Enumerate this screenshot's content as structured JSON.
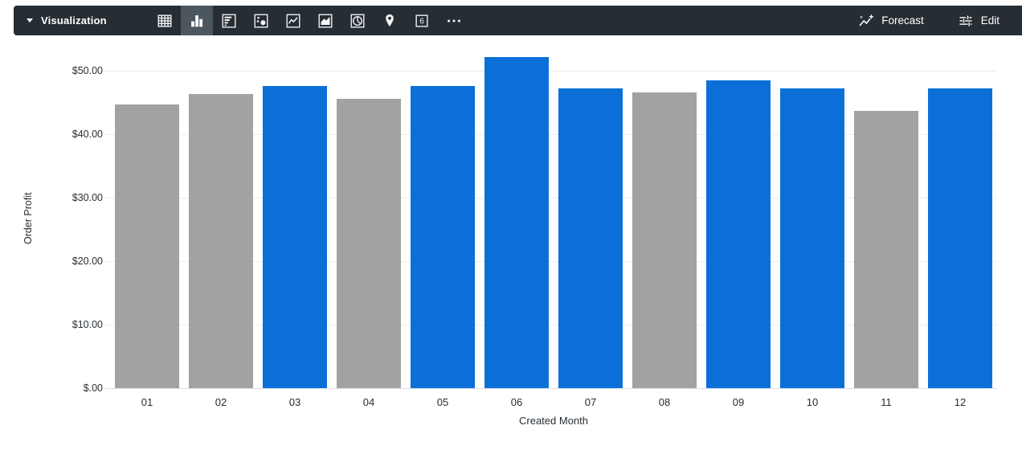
{
  "toolbar": {
    "title": "Visualization",
    "bg_color": "#262d33",
    "selected_bg_color": "#4c565e",
    "icon_color": "#f2f4f5",
    "chart_type_icons": [
      {
        "name": "table-chart-icon",
        "selected": false
      },
      {
        "name": "column-chart-icon",
        "selected": true
      },
      {
        "name": "bar-chart-icon",
        "selected": false
      },
      {
        "name": "scatter-chart-icon",
        "selected": false
      },
      {
        "name": "line-chart-icon",
        "selected": false
      },
      {
        "name": "area-chart-icon",
        "selected": false
      },
      {
        "name": "pie-chart-icon",
        "selected": false
      },
      {
        "name": "map-pin-icon",
        "selected": false
      },
      {
        "name": "single-value-icon",
        "selected": false
      },
      {
        "name": "more-options-icon",
        "selected": false
      }
    ],
    "single_value_icon_text": "6",
    "actions": {
      "forecast": {
        "label": "Forecast",
        "icon": "forecast-sparkle-icon"
      },
      "edit": {
        "label": "Edit",
        "icon": "tune-icon"
      }
    }
  },
  "chart_data": {
    "type": "bar",
    "title": "",
    "xlabel": "Created Month",
    "ylabel": "Order Profit",
    "categories": [
      "01",
      "02",
      "03",
      "04",
      "05",
      "06",
      "07",
      "08",
      "09",
      "10",
      "11",
      "12"
    ],
    "values": [
      44.6,
      46.3,
      47.5,
      45.5,
      47.5,
      52.1,
      47.2,
      46.6,
      48.4,
      47.2,
      43.7,
      47.2
    ],
    "bar_colors": [
      "gray",
      "gray",
      "blue",
      "gray",
      "blue",
      "blue",
      "blue",
      "gray",
      "blue",
      "blue",
      "gray",
      "blue"
    ],
    "palette": {
      "blue": "#0a70d8",
      "gray": "#a2a2a2"
    },
    "y_ticks": [
      {
        "value": 0,
        "label": "$.00"
      },
      {
        "value": 10,
        "label": "$10.00"
      },
      {
        "value": 20,
        "label": "$20.00"
      },
      {
        "value": 30,
        "label": "$30.00"
      },
      {
        "value": 40,
        "label": "$40.00"
      },
      {
        "value": 50,
        "label": "$50.00"
      }
    ],
    "ylim": [
      0,
      53.5
    ],
    "grid": true,
    "legend": "none"
  }
}
